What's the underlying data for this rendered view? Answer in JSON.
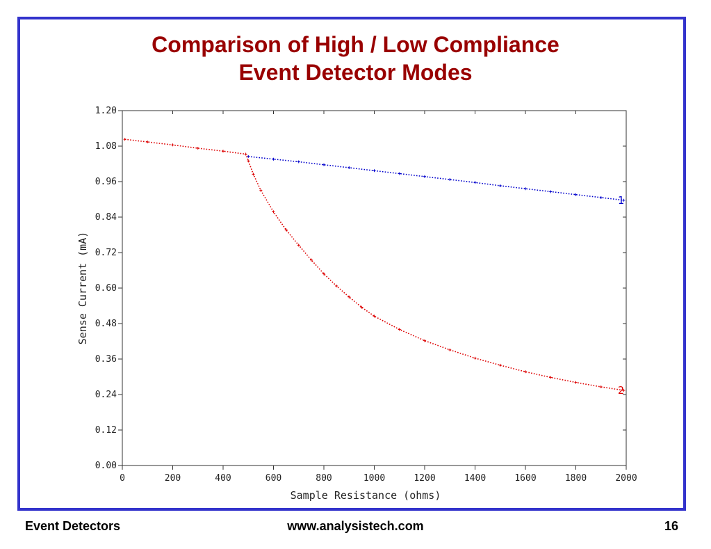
{
  "slide": {
    "title_line1": "Comparison of High / Low Compliance",
    "title_line2": "Event Detector Modes",
    "footer_left": "Event Detectors",
    "footer_center": "www.analysistech.com",
    "footer_right": "16",
    "border_color": "#3333cc",
    "title_color": "#990000"
  },
  "chart_data": {
    "type": "scatter",
    "title": "",
    "xlabel": "Sample Resistance (ohms)",
    "ylabel": "Sense Current (mA)",
    "xlim": [
      0,
      2000
    ],
    "ylim": [
      0,
      1.2
    ],
    "xticks": [
      "0",
      "200",
      "400",
      "600",
      "800",
      "1000",
      "1200",
      "1400",
      "1600",
      "1800",
      "2000"
    ],
    "yticks": [
      "0.00",
      "0.12",
      "0.24",
      "0.36",
      "0.48",
      "0.60",
      "0.72",
      "0.84",
      "0.96",
      "1.08",
      "1.20"
    ],
    "grid": false,
    "series": [
      {
        "name": "1",
        "color": "#0000cc",
        "x": [
          500,
          600,
          700,
          800,
          900,
          1000,
          1100,
          1200,
          1300,
          1400,
          1500,
          1600,
          1700,
          1800,
          1900,
          1990
        ],
        "y": [
          1.045,
          1.036,
          1.027,
          1.017,
          1.007,
          0.997,
          0.987,
          0.977,
          0.967,
          0.957,
          0.946,
          0.936,
          0.926,
          0.916,
          0.906,
          0.897
        ]
      },
      {
        "name": "2",
        "color": "#dd0000",
        "x": [
          10,
          100,
          200,
          300,
          400,
          490,
          500,
          520,
          550,
          600,
          650,
          700,
          750,
          800,
          850,
          900,
          950,
          1000,
          1100,
          1200,
          1300,
          1400,
          1500,
          1600,
          1700,
          1800,
          1900,
          1990
        ],
        "y": [
          1.103,
          1.094,
          1.084,
          1.073,
          1.063,
          1.053,
          1.03,
          0.985,
          0.93,
          0.858,
          0.797,
          0.745,
          0.695,
          0.648,
          0.607,
          0.57,
          0.535,
          0.505,
          0.46,
          0.422,
          0.391,
          0.363,
          0.339,
          0.317,
          0.298,
          0.281,
          0.266,
          0.254
        ]
      }
    ]
  }
}
